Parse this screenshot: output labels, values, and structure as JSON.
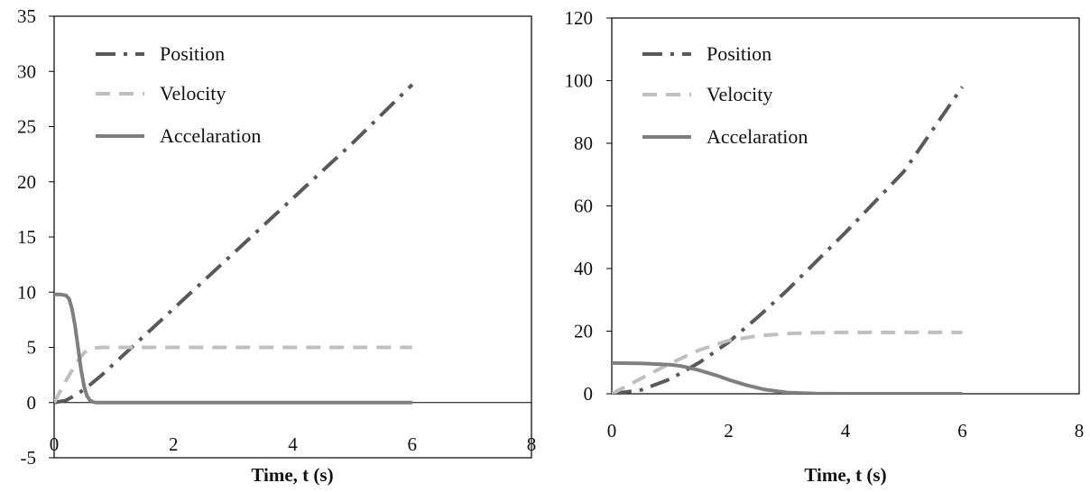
{
  "chart_data": [
    {
      "type": "line",
      "xlabel": "Time, t (s)",
      "ylabel": "",
      "xlim": [
        0,
        8
      ],
      "ylim": [
        -5,
        35
      ],
      "x_ticks": [
        0,
        2,
        4,
        6,
        8
      ],
      "y_ticks": [
        -5,
        0,
        5,
        10,
        15,
        20,
        25,
        30,
        35
      ],
      "grid": false,
      "legend_position": "top-left",
      "series": [
        {
          "name": "Position",
          "style": "dash-dot",
          "color": "#595959",
          "x": [
            0,
            0.2,
            0.4,
            0.6,
            0.8,
            1,
            1.5,
            2,
            3,
            4,
            5,
            6
          ],
          "y": [
            0,
            0.2,
            0.8,
            1.6,
            2.5,
            3.5,
            6,
            8.5,
            13.5,
            18.5,
            23.5,
            28.8
          ]
        },
        {
          "name": "Velocity",
          "style": "dashed",
          "color": "#bfbfbf",
          "x": [
            0,
            0.1,
            0.2,
            0.3,
            0.4,
            0.5,
            0.6,
            0.7,
            0.8,
            1,
            2,
            3,
            4,
            5,
            6
          ],
          "y": [
            0,
            1,
            2,
            2.9,
            3.8,
            4.5,
            4.85,
            4.95,
            5,
            5,
            5,
            5,
            5,
            5,
            5
          ]
        },
        {
          "name": "Accelaration",
          "style": "solid",
          "color": "#7f7f7f",
          "x": [
            0,
            0.1,
            0.2,
            0.25,
            0.3,
            0.35,
            0.4,
            0.45,
            0.5,
            0.55,
            0.6,
            0.65,
            0.7,
            1,
            2,
            3,
            4,
            5,
            6
          ],
          "y": [
            9.8,
            9.8,
            9.7,
            9.4,
            8.5,
            7,
            5,
            3,
            1.5,
            0.6,
            0.2,
            0.05,
            0,
            0,
            0,
            0,
            0,
            0,
            0
          ]
        }
      ]
    },
    {
      "type": "line",
      "xlabel": "Time, t (s)",
      "ylabel": "",
      "xlim": [
        0,
        8
      ],
      "ylim": [
        0,
        120
      ],
      "x_ticks": [
        0,
        2,
        4,
        6,
        8
      ],
      "y_ticks": [
        0,
        20,
        40,
        60,
        80,
        100,
        120
      ],
      "grid": false,
      "legend_position": "top-left",
      "series": [
        {
          "name": "Position",
          "style": "dash-dot",
          "color": "#595959",
          "x": [
            0,
            0.5,
            1,
            1.5,
            2,
            2.5,
            3,
            4,
            5,
            6
          ],
          "y": [
            0,
            1.2,
            4.7,
            10,
            16.5,
            24.5,
            33,
            51.5,
            71,
            98
          ]
        },
        {
          "name": "Velocity",
          "style": "dashed",
          "color": "#bfbfbf",
          "x": [
            0,
            0.5,
            1,
            1.5,
            2,
            2.5,
            3,
            3.5,
            4,
            5,
            6
          ],
          "y": [
            0,
            4.9,
            9.7,
            14,
            17,
            18.5,
            19.2,
            19.5,
            19.6,
            19.6,
            19.6
          ]
        },
        {
          "name": "Accelaration",
          "style": "solid",
          "color": "#7f7f7f",
          "x": [
            0,
            0.5,
            1,
            1.2,
            1.5,
            1.8,
            2,
            2.3,
            2.6,
            3,
            3.5,
            4,
            5,
            6
          ],
          "y": [
            9.8,
            9.7,
            9.3,
            8.8,
            7.5,
            5.8,
            4.5,
            2.8,
            1.4,
            0.4,
            0.05,
            0,
            0,
            0
          ]
        }
      ]
    }
  ]
}
